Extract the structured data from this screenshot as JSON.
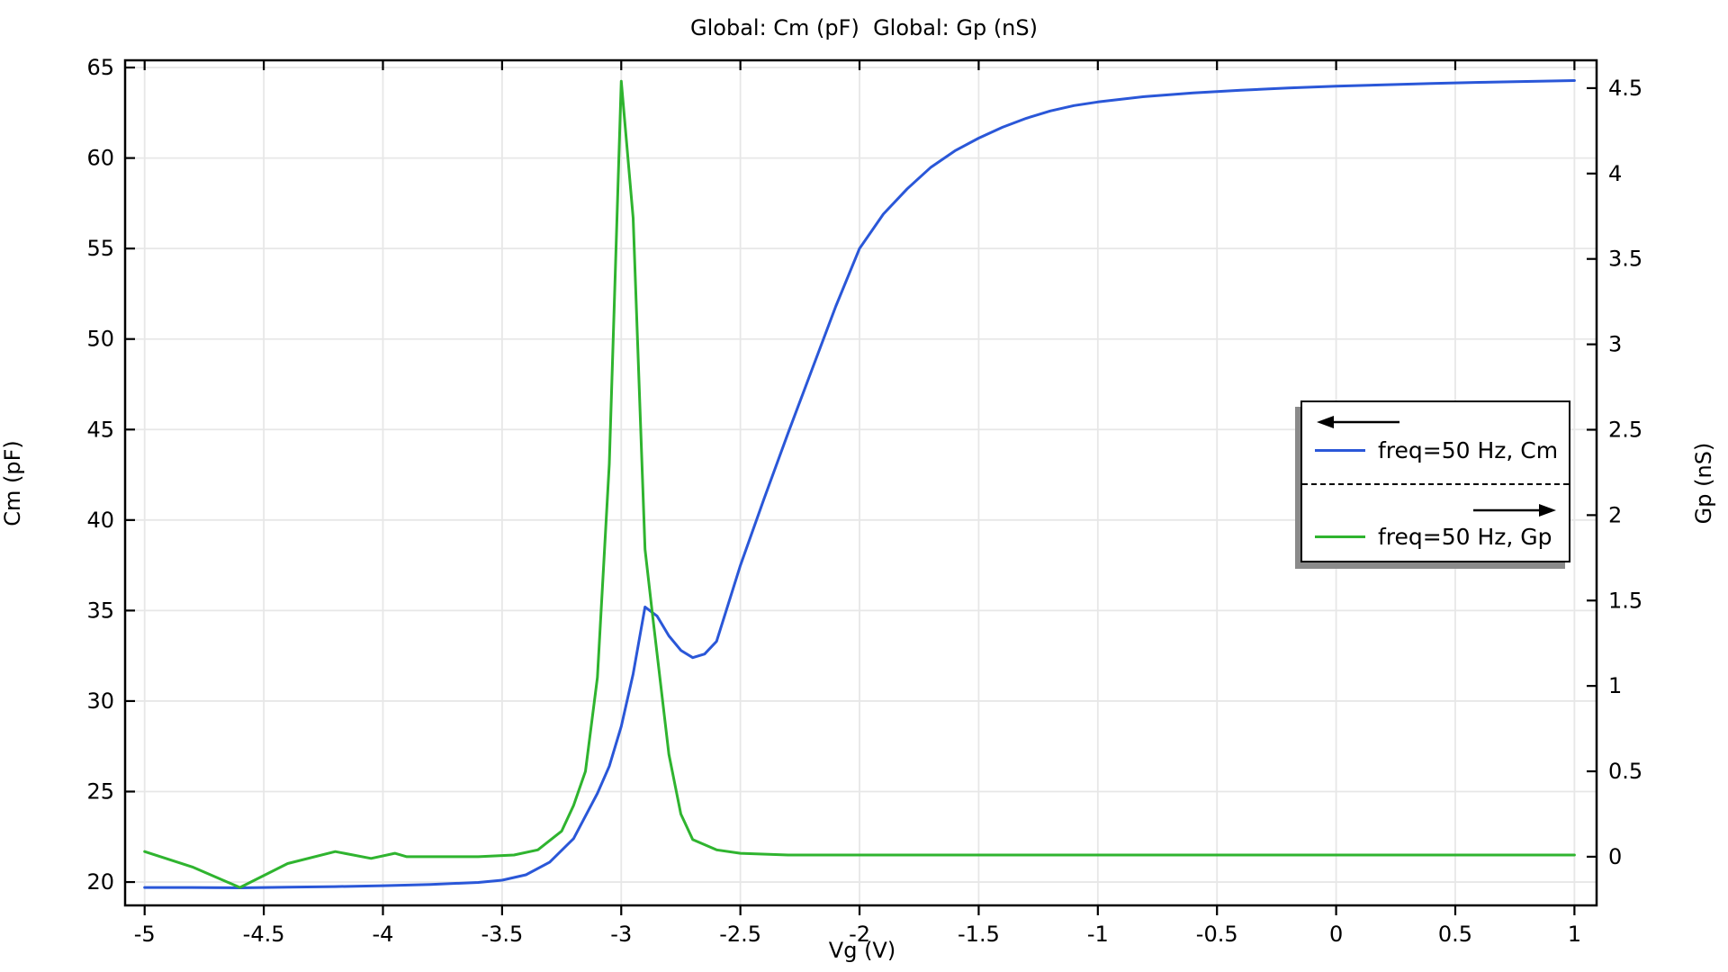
{
  "chart_data": {
    "type": "line",
    "title": "Global: Cm (pF)  Global: Gp (nS)",
    "x_axis": {
      "label": "Vg (V)",
      "ticks": [
        -5,
        -4.5,
        -4,
        -3.5,
        -3,
        -2.5,
        -2,
        -1.5,
        -1,
        -0.5,
        0,
        0.5,
        1
      ],
      "range": [
        -5.082,
        1.093
      ]
    },
    "y_left_axis": {
      "label": "Cm (pF)",
      "ticks": [
        20,
        25,
        30,
        35,
        40,
        45,
        50,
        55,
        60,
        65
      ],
      "range": [
        18.71,
        65.4
      ]
    },
    "y_right_axis": {
      "label": "Gp (nS)",
      "ticks": [
        0,
        0.5,
        1,
        1.5,
        2,
        2.5,
        3,
        3.5,
        4,
        4.5
      ],
      "range": [
        -0.285,
        4.663
      ]
    },
    "grid": true,
    "legend": {
      "position": "right-middle",
      "entries": [
        {
          "label": "freq=50 Hz, Cm",
          "color": "#2a57d8",
          "axis": "left",
          "arrow": "left"
        },
        {
          "label": "freq=50 Hz, Gp",
          "color": "#2fb42f",
          "axis": "right",
          "arrow": "right"
        }
      ]
    },
    "series": [
      {
        "name": "freq=50 Hz, Cm",
        "axis": "left",
        "color": "#2a57d8",
        "points": [
          [
            -5,
            19.7
          ],
          [
            -4.8,
            19.7
          ],
          [
            -4.6,
            19.68
          ],
          [
            -4.4,
            19.72
          ],
          [
            -4.2,
            19.75
          ],
          [
            -4.0,
            19.8
          ],
          [
            -3.8,
            19.87
          ],
          [
            -3.6,
            19.98
          ],
          [
            -3.5,
            20.1
          ],
          [
            -3.4,
            20.4
          ],
          [
            -3.3,
            21.1
          ],
          [
            -3.2,
            22.4
          ],
          [
            -3.1,
            24.9
          ],
          [
            -3.05,
            26.4
          ],
          [
            -3.0,
            28.6
          ],
          [
            -2.95,
            31.5
          ],
          [
            -2.9,
            35.2
          ],
          [
            -2.85,
            34.7
          ],
          [
            -2.8,
            33.6
          ],
          [
            -2.75,
            32.8
          ],
          [
            -2.7,
            32.4
          ],
          [
            -2.65,
            32.6
          ],
          [
            -2.6,
            33.3
          ],
          [
            -2.5,
            37.5
          ],
          [
            -2.4,
            41.2
          ],
          [
            -2.3,
            44.8
          ],
          [
            -2.2,
            48.3
          ],
          [
            -2.1,
            51.8
          ],
          [
            -2.0,
            55.0
          ],
          [
            -1.9,
            56.9
          ],
          [
            -1.8,
            58.3
          ],
          [
            -1.7,
            59.5
          ],
          [
            -1.6,
            60.4
          ],
          [
            -1.5,
            61.1
          ],
          [
            -1.4,
            61.7
          ],
          [
            -1.3,
            62.2
          ],
          [
            -1.2,
            62.6
          ],
          [
            -1.1,
            62.9
          ],
          [
            -1.0,
            63.1
          ],
          [
            -0.8,
            63.4
          ],
          [
            -0.6,
            63.6
          ],
          [
            -0.4,
            63.75
          ],
          [
            -0.2,
            63.87
          ],
          [
            0,
            63.97
          ],
          [
            0.2,
            64.05
          ],
          [
            0.4,
            64.12
          ],
          [
            0.6,
            64.18
          ],
          [
            0.8,
            64.23
          ],
          [
            1,
            64.28
          ]
        ]
      },
      {
        "name": "freq=50 Hz, Gp",
        "axis": "right",
        "color": "#2fb42f",
        "points": [
          [
            -5,
            0.03
          ],
          [
            -4.8,
            -0.06
          ],
          [
            -4.6,
            -0.18
          ],
          [
            -4.4,
            -0.04
          ],
          [
            -4.2,
            0.03
          ],
          [
            -4.05,
            -0.01
          ],
          [
            -3.95,
            0.02
          ],
          [
            -3.9,
            0.0
          ],
          [
            -3.8,
            0.0
          ],
          [
            -3.6,
            0.0
          ],
          [
            -3.45,
            0.01
          ],
          [
            -3.35,
            0.04
          ],
          [
            -3.25,
            0.15
          ],
          [
            -3.2,
            0.3
          ],
          [
            -3.15,
            0.5
          ],
          [
            -3.1,
            1.05
          ],
          [
            -3.05,
            2.3
          ],
          [
            -3.0,
            4.54
          ],
          [
            -2.95,
            3.74
          ],
          [
            -2.9,
            1.8
          ],
          [
            -2.87,
            1.43
          ],
          [
            -2.8,
            0.6
          ],
          [
            -2.75,
            0.25
          ],
          [
            -2.7,
            0.1
          ],
          [
            -2.6,
            0.04
          ],
          [
            -2.5,
            0.02
          ],
          [
            -2.3,
            0.01
          ],
          [
            -2.0,
            0.01
          ],
          [
            -1.5,
            0.01
          ],
          [
            -1.0,
            0.01
          ],
          [
            -0.5,
            0.01
          ],
          [
            0,
            0.01
          ],
          [
            0.5,
            0.01
          ],
          [
            1,
            0.01
          ]
        ]
      }
    ]
  },
  "colors": {
    "background": "#ffffff",
    "grid": "#e7e7e7",
    "frame": "#000000",
    "legend_shadow": "#8a8a8a",
    "series_cm": "#2a57d8",
    "series_gp": "#2fb42f"
  }
}
